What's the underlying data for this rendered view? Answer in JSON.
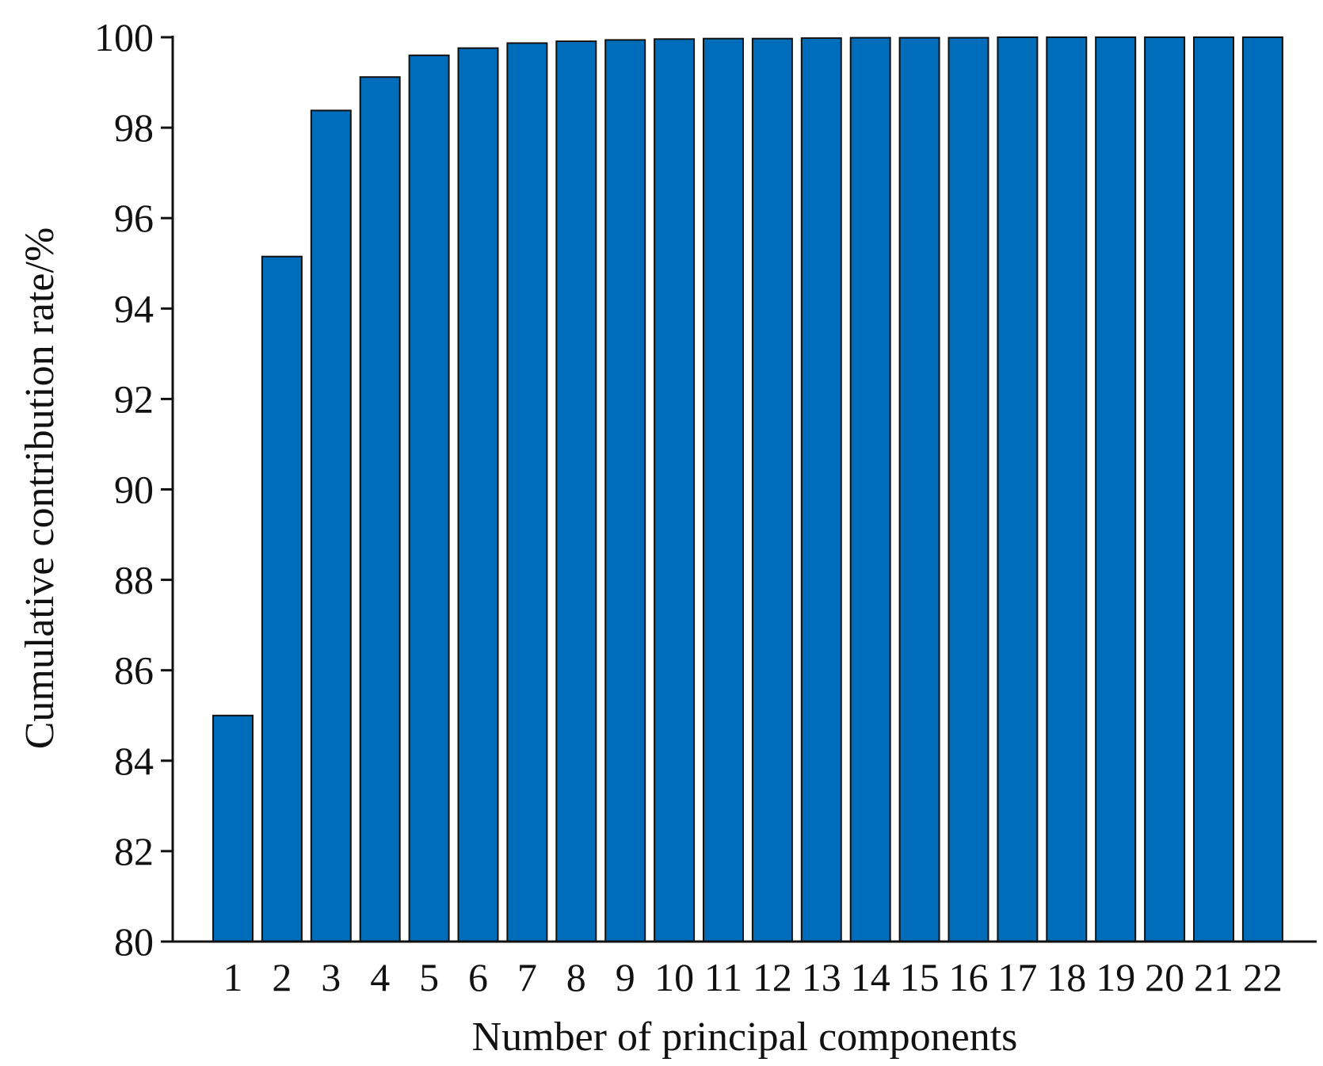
{
  "chart_data": {
    "type": "bar",
    "title": "",
    "xlabel": "Number of principal components",
    "ylabel": "Cumulative contribution rate/%",
    "categories": [
      "1",
      "2",
      "3",
      "4",
      "5",
      "6",
      "7",
      "8",
      "9",
      "10",
      "11",
      "12",
      "13",
      "14",
      "15",
      "16",
      "17",
      "18",
      "19",
      "20",
      "21",
      "22"
    ],
    "values": [
      85.0,
      95.15,
      98.38,
      99.12,
      99.6,
      99.76,
      99.87,
      99.91,
      99.94,
      99.96,
      99.97,
      99.97,
      99.98,
      99.99,
      99.99,
      99.99,
      100.0,
      100.0,
      100.0,
      100.0,
      100.0,
      100.0
    ],
    "ylim": [
      80,
      100
    ],
    "yticks": [
      80,
      82,
      84,
      86,
      88,
      90,
      92,
      94,
      96,
      98,
      100
    ],
    "grid": false,
    "legend": "none",
    "bar_color": "#006dba",
    "edge_color": "#111111"
  }
}
